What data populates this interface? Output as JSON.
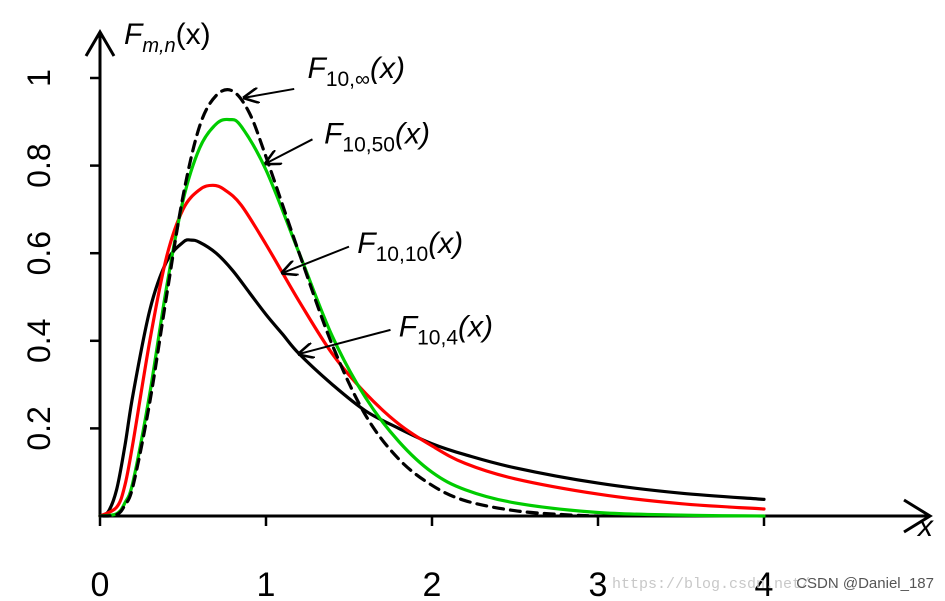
{
  "chart_data": {
    "type": "line",
    "title": "",
    "ylabel": "F_{m,n}(x)",
    "ylabel_parts": {
      "main": "F",
      "sub": "m,n",
      "tail": "(x)"
    },
    "xlabel": "x",
    "xlim": [
      0,
      4.9
    ],
    "ylim": [
      0,
      1.1
    ],
    "xticks": [
      "0",
      "1",
      "2",
      "3",
      "4"
    ],
    "yticks": [
      "0",
      "0.2",
      "0.4",
      "0.6",
      "0.8",
      "1"
    ],
    "grid": false,
    "series": [
      {
        "name": "F_{10,4}(x)",
        "label_parts": {
          "main": "F",
          "sub": "10,4",
          "tail": "(x)"
        },
        "color": "#000000",
        "dashed": false,
        "x": [
          0,
          0.05,
          0.1,
          0.15,
          0.2,
          0.3,
          0.4,
          0.5,
          0.55,
          0.6,
          0.7,
          0.8,
          0.9,
          1.0,
          1.1,
          1.2,
          1.4,
          1.6,
          1.8,
          2.0,
          2.2,
          2.5,
          3.0,
          3.5,
          4.0
        ],
        "y": [
          0,
          0.01,
          0.06,
          0.16,
          0.28,
          0.47,
          0.58,
          0.625,
          0.63,
          0.625,
          0.6,
          0.56,
          0.51,
          0.46,
          0.415,
          0.37,
          0.3,
          0.24,
          0.2,
          0.165,
          0.14,
          0.11,
          0.075,
          0.052,
          0.038
        ]
      },
      {
        "name": "F_{10,10}(x)",
        "label_parts": {
          "main": "F",
          "sub": "10,10",
          "tail": "(x)"
        },
        "color": "#ff0000",
        "dashed": false,
        "x": [
          0,
          0.1,
          0.15,
          0.2,
          0.3,
          0.4,
          0.5,
          0.6,
          0.68,
          0.75,
          0.85,
          1.0,
          1.2,
          1.4,
          1.6,
          1.8,
          2.0,
          2.2,
          2.5,
          3.0,
          3.5,
          4.0
        ],
        "y": [
          0,
          0.02,
          0.07,
          0.17,
          0.4,
          0.59,
          0.7,
          0.745,
          0.755,
          0.745,
          0.71,
          0.62,
          0.49,
          0.37,
          0.28,
          0.21,
          0.16,
          0.12,
          0.085,
          0.05,
          0.028,
          0.016
        ]
      },
      {
        "name": "F_{10,50}(x)",
        "label_parts": {
          "main": "F",
          "sub": "10,50",
          "tail": "(x)"
        },
        "color": "#00cc00",
        "dashed": false,
        "x": [
          0,
          0.1,
          0.15,
          0.2,
          0.3,
          0.4,
          0.5,
          0.6,
          0.7,
          0.78,
          0.85,
          1.0,
          1.2,
          1.4,
          1.6,
          1.8,
          2.0,
          2.2,
          2.5,
          3.0,
          3.5,
          4.0
        ],
        "y": [
          0,
          0.005,
          0.03,
          0.08,
          0.28,
          0.52,
          0.72,
          0.84,
          0.895,
          0.905,
          0.89,
          0.79,
          0.6,
          0.41,
          0.27,
          0.17,
          0.1,
          0.06,
          0.03,
          0.008,
          0.002,
          0.0
        ]
      },
      {
        "name": "F_{10,∞}(x)",
        "label_parts": {
          "main": "F",
          "sub": "10,∞",
          "tail": "(x)"
        },
        "color": "#000000",
        "dashed": true,
        "x": [
          0,
          0.1,
          0.15,
          0.2,
          0.3,
          0.4,
          0.5,
          0.6,
          0.7,
          0.8,
          0.9,
          1.0,
          1.2,
          1.4,
          1.6,
          1.8,
          2.0,
          2.2,
          2.5,
          2.8,
          3.0
        ],
        "y": [
          0,
          0.003,
          0.025,
          0.07,
          0.26,
          0.5,
          0.73,
          0.89,
          0.96,
          0.97,
          0.92,
          0.82,
          0.6,
          0.39,
          0.23,
          0.13,
          0.07,
          0.035,
          0.012,
          0.003,
          0.0
        ]
      }
    ],
    "annotations": [
      {
        "series": 3,
        "text_x": 1.25,
        "text_y": 1.0,
        "arrow_from": [
          1.17,
          0.975
        ],
        "arrow_to": [
          0.87,
          0.955
        ]
      },
      {
        "series": 2,
        "text_x": 1.35,
        "text_y": 0.85,
        "arrow_from": [
          1.28,
          0.86
        ],
        "arrow_to": [
          1.0,
          0.805
        ]
      },
      {
        "series": 1,
        "text_x": 1.55,
        "text_y": 0.6,
        "arrow_from": [
          1.5,
          0.615
        ],
        "arrow_to": [
          1.1,
          0.555
        ]
      },
      {
        "series": 0,
        "text_x": 1.8,
        "text_y": 0.41,
        "arrow_from": [
          1.75,
          0.425
        ],
        "arrow_to": [
          1.2,
          0.37
        ]
      }
    ]
  },
  "watermark": "https://blog.csdn.net/...",
  "credit": "CSDN @Daniel_187"
}
